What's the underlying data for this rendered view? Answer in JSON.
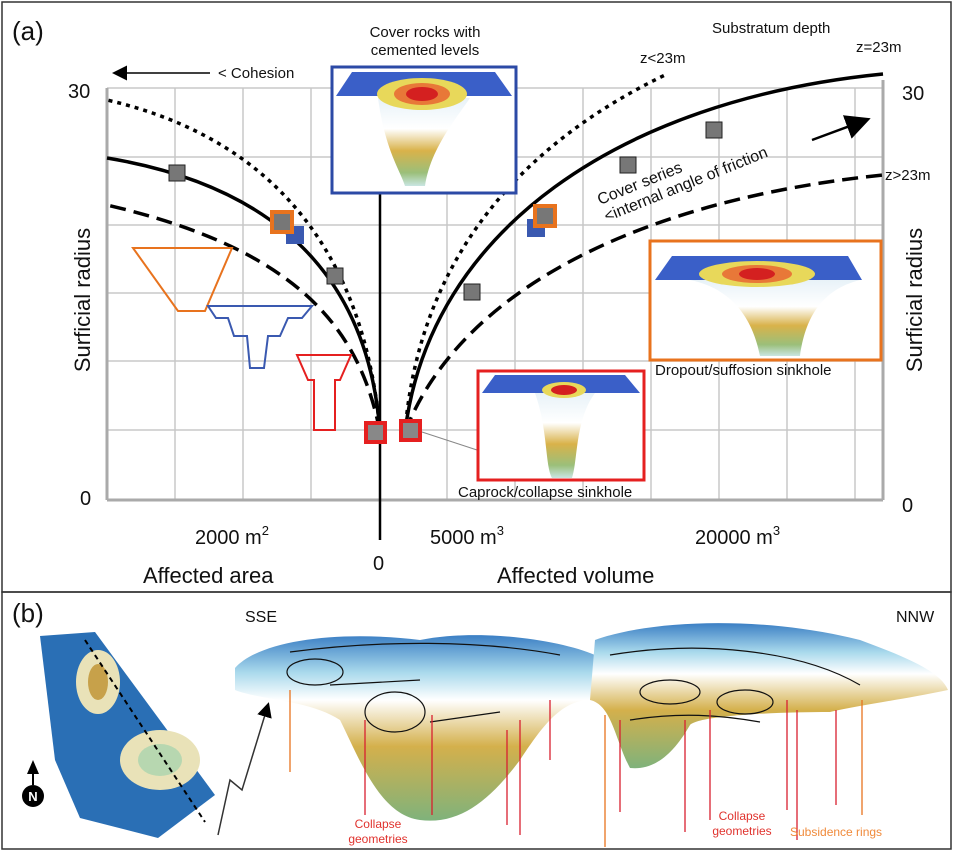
{
  "panel_a": {
    "label": "(a)",
    "substratum_title": "Substratum depth",
    "z_equal": "z=23m",
    "z_less": "z<23m",
    "z_greater": "z>23m",
    "cohesion": "< Cohesion",
    "cover_rocks": [
      "Cover rocks with",
      "cemented levels"
    ],
    "cover_series": [
      "Cover series",
      "<internal angle of friction"
    ],
    "dropout": "Dropout/suffosion sinkhole",
    "caprock": "Caprock/collapse sinkhole",
    "y_axis_left": "Surficial radius",
    "y_axis_right": "Surficial radius",
    "y_ticks_left": [
      "30",
      "0"
    ],
    "y_ticks_right": [
      "30",
      "0"
    ],
    "x_ticks": [
      {
        "text": "2000 m",
        "sup": "2"
      },
      {
        "text": "5000 m",
        "sup": "3"
      },
      {
        "text": "20000 m",
        "sup": "3"
      }
    ],
    "origin": "0",
    "x_axis_left": "Affected area",
    "x_axis_right": "Affected volume"
  },
  "panel_b": {
    "label": "(b)",
    "sse": "SSE",
    "nnw": "NNW",
    "north": "N",
    "collapse_left": [
      "Collapse",
      "geometries"
    ],
    "collapse_right": [
      "Collapse",
      "geometries"
    ],
    "subsidence": "Subsidence rings"
  }
}
